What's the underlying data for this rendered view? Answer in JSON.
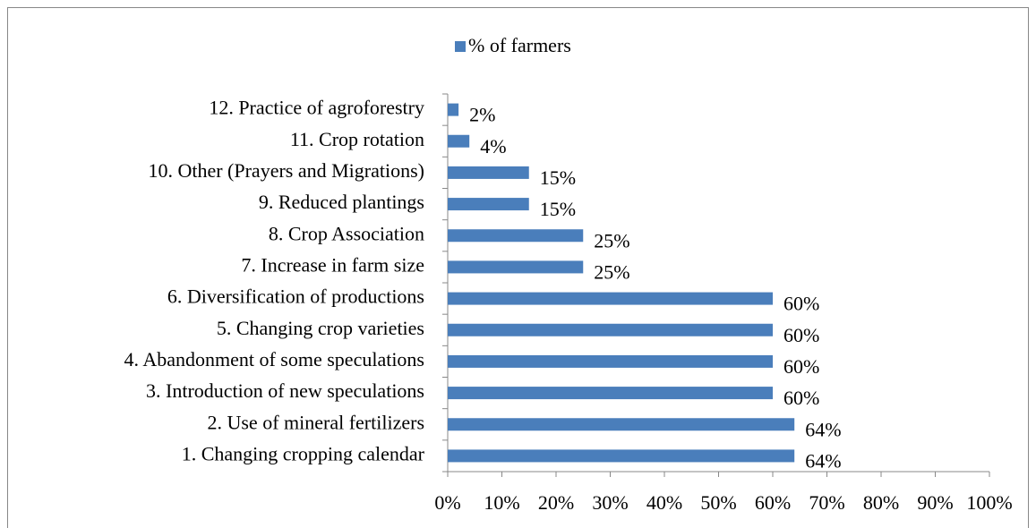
{
  "chart_data": {
    "type": "barh",
    "categories": [
      "1. Changing cropping calendar",
      "2. Use of mineral fertilizers",
      "3. Introduction of new speculations",
      "4. Abandonment of some speculations",
      "5. Changing crop varieties",
      "6. Diversification of productions",
      "7. Increase in farm size",
      "8. Crop Association",
      "9. Reduced plantings",
      "10. Other (Prayers and Migrations)",
      "11. Crop rotation",
      "12. Practice of agroforestry"
    ],
    "series": [
      {
        "name": "% of farmers",
        "color": "#4a7ebb",
        "values": [
          64,
          64,
          60,
          60,
          60,
          60,
          25,
          25,
          15,
          15,
          4,
          2
        ],
        "value_labels": [
          "64%",
          "64%",
          "60%",
          "60%",
          "60%",
          "60%",
          "25%",
          "25%",
          "15%",
          "15%",
          "4%",
          "2%"
        ]
      }
    ],
    "xlim": [
      0,
      100
    ],
    "xticks": [
      {
        "value": 0,
        "label": "0%"
      },
      {
        "value": 10,
        "label": "10%"
      },
      {
        "value": 20,
        "label": "20%"
      },
      {
        "value": 30,
        "label": "30%"
      },
      {
        "value": 40,
        "label": "40%"
      },
      {
        "value": 50,
        "label": "50%"
      },
      {
        "value": 60,
        "label": "60%"
      },
      {
        "value": 70,
        "label": "70%"
      },
      {
        "value": 80,
        "label": "80%"
      },
      {
        "value": 90,
        "label": "90%"
      },
      {
        "value": 100,
        "label": "100%"
      }
    ],
    "legend": "top"
  }
}
